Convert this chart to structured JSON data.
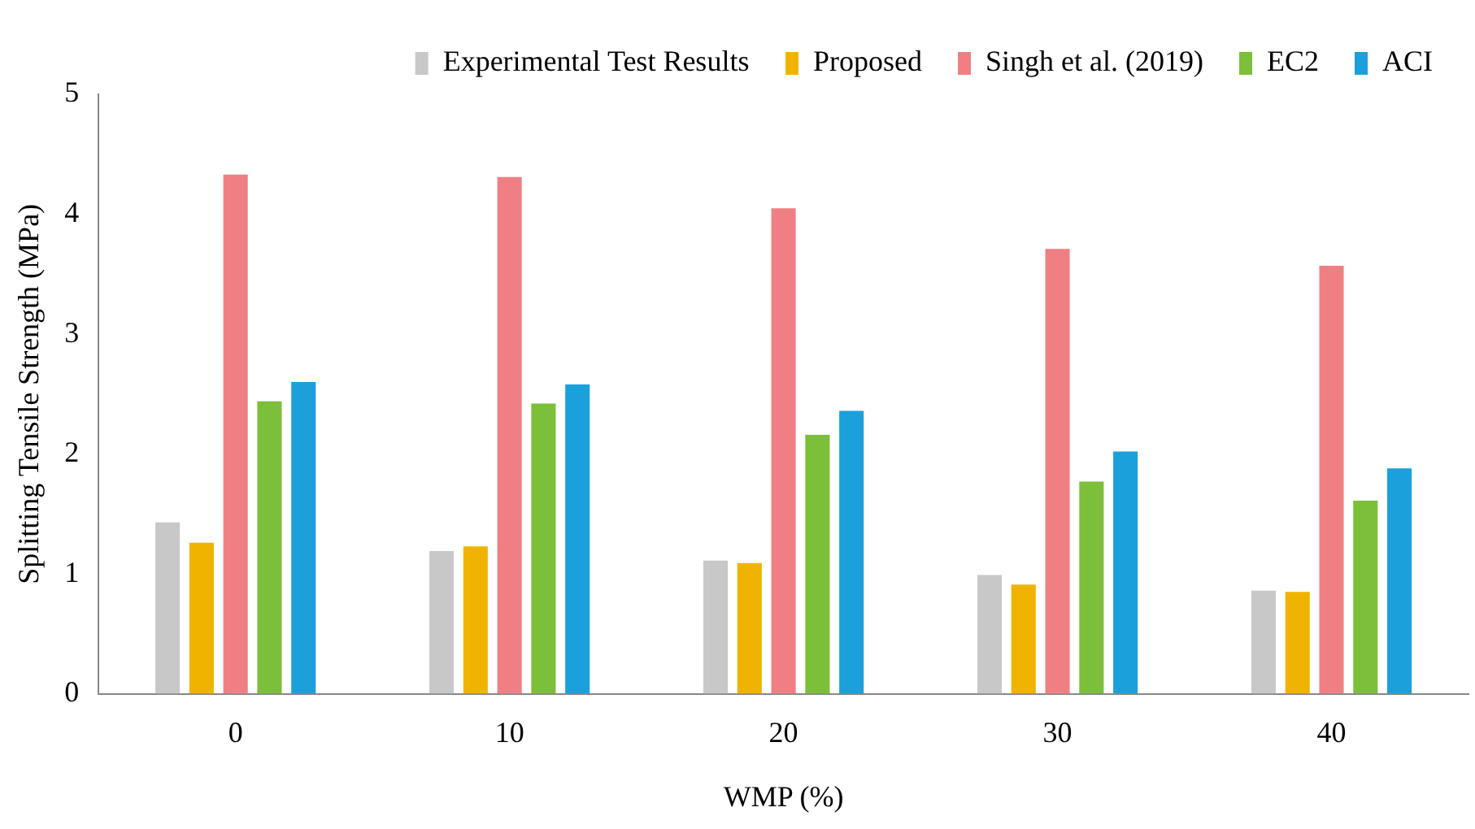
{
  "chart_data": {
    "type": "bar",
    "xlabel": "WMP (%)",
    "ylabel": "Splitting Tensile Strength (MPa)",
    "categories": [
      "0",
      "10",
      "20",
      "30",
      "40"
    ],
    "series": [
      {
        "name": "Experimental Test Results",
        "color": "#c8c8c8",
        "values": [
          1.43,
          1.19,
          1.11,
          0.99,
          0.86
        ]
      },
      {
        "name": "Proposed",
        "color": "#f0b400",
        "values": [
          1.26,
          1.23,
          1.09,
          0.91,
          0.85
        ]
      },
      {
        "name": "Singh et al. (2019)",
        "color": "#f07f84",
        "values": [
          4.33,
          4.31,
          4.05,
          3.71,
          3.57
        ]
      },
      {
        "name": "EC2",
        "color": "#7cbf3a",
        "values": [
          2.44,
          2.42,
          2.16,
          1.77,
          1.61
        ]
      },
      {
        "name": "ACI",
        "color": "#1ba0dc",
        "values": [
          2.6,
          2.58,
          2.36,
          2.02,
          1.88
        ]
      }
    ],
    "ylim": [
      0,
      5
    ],
    "yticks": [
      0,
      1,
      2,
      3,
      4,
      5
    ],
    "grid": false,
    "legend": "top"
  }
}
